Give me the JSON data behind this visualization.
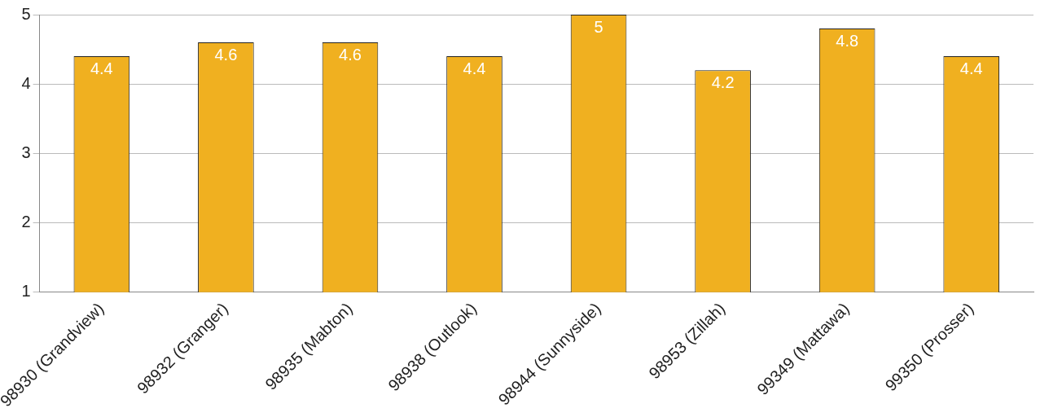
{
  "chart_data": {
    "type": "bar",
    "categories": [
      "98930 (Grandview)",
      "98932 (Granger)",
      "98935 (Mabton)",
      "98938 (Outlook)",
      "98944 (Sunnyside)",
      "98953 (Zillah)",
      "99349 (Mattawa)",
      "99350 (Prosser)"
    ],
    "values": [
      4.4,
      4.6,
      4.6,
      4.4,
      5,
      4.2,
      4.8,
      4.4
    ],
    "color": "#f0b020",
    "ylim": [
      1,
      5
    ],
    "yticks": [
      1,
      2,
      3,
      4,
      5
    ],
    "grid": "y",
    "data_labels": true,
    "legend": false
  }
}
